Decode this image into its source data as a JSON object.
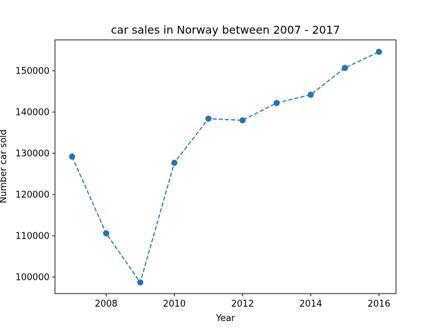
{
  "colors": {
    "series": "#1f77b4",
    "axis": "#000000",
    "background": "#ffffff"
  },
  "chart_data": {
    "type": "line",
    "title": "car sales in Norway between 2007 - 2017",
    "xlabel": "Year",
    "ylabel": "Number car sold",
    "xlim": [
      2006.5,
      2016.5
    ],
    "ylim": [
      96000,
      157500
    ],
    "xticks": [
      2008,
      2010,
      2012,
      2014,
      2016
    ],
    "yticks": [
      100000,
      110000,
      120000,
      130000,
      140000,
      150000
    ],
    "grid": false,
    "legend": "none",
    "line_style": "dashed",
    "marker": "circle",
    "series": [
      {
        "x": [
          2007,
          2008,
          2009,
          2010,
          2011,
          2012,
          2013,
          2014,
          2015,
          2016
        ],
        "y": [
          129200,
          110600,
          98700,
          127700,
          138400,
          138000,
          142200,
          144200,
          150700,
          154600
        ]
      }
    ]
  }
}
